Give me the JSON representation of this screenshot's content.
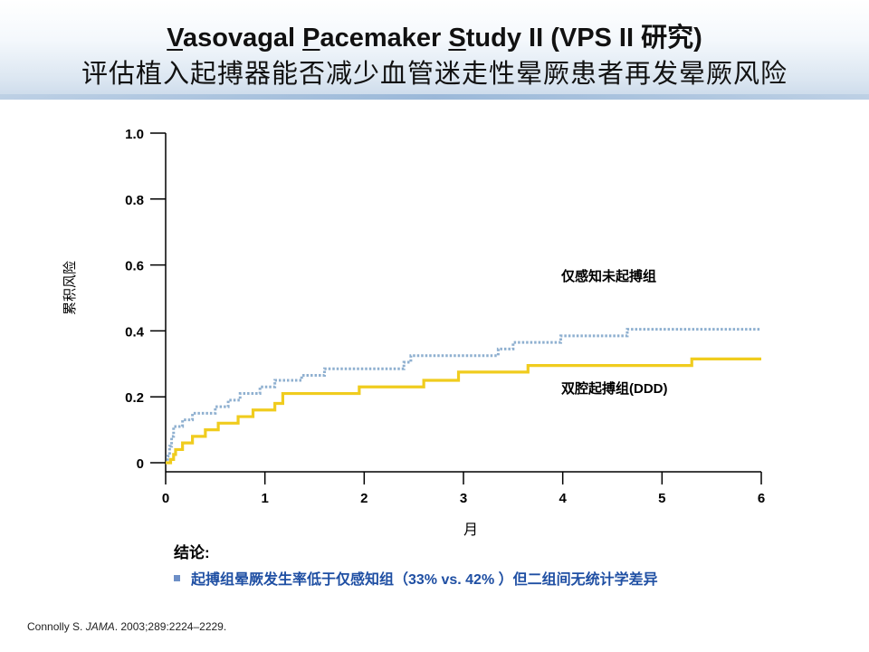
{
  "header": {
    "title_parts": [
      "V",
      "asovagal ",
      "P",
      "acemaker ",
      "S",
      "tudy II (VPS II 研究)"
    ],
    "subtitle": "评估植入起搏器能否减少血管迷走性晕厥患者再发晕厥风险"
  },
  "chart_data": {
    "type": "line",
    "xlabel": "月",
    "ylabel": "累积风险",
    "xlim": [
      0,
      6
    ],
    "ylim": [
      0,
      1.0
    ],
    "x_ticks": [
      "0",
      "1",
      "2",
      "3",
      "4",
      "5",
      "6"
    ],
    "y_ticks": [
      "0",
      "0.2",
      "0.4",
      "0.6",
      "0.8",
      "1.0"
    ],
    "grid": false,
    "series": [
      {
        "name": "仅感知未起搏组",
        "color": "#8fb0d0",
        "style": "dotted",
        "points": [
          [
            0,
            0
          ],
          [
            0.02,
            0.02
          ],
          [
            0.04,
            0.05
          ],
          [
            0.06,
            0.08
          ],
          [
            0.08,
            0.11
          ],
          [
            0.17,
            0.13
          ],
          [
            0.27,
            0.15
          ],
          [
            0.5,
            0.17
          ],
          [
            0.63,
            0.19
          ],
          [
            0.75,
            0.21
          ],
          [
            0.95,
            0.23
          ],
          [
            1.1,
            0.25
          ],
          [
            1.37,
            0.265
          ],
          [
            1.6,
            0.285
          ],
          [
            2.4,
            0.305
          ],
          [
            2.47,
            0.325
          ],
          [
            3.35,
            0.345
          ],
          [
            3.5,
            0.365
          ],
          [
            3.98,
            0.385
          ],
          [
            4.65,
            0.405
          ],
          [
            6.0,
            0.405
          ]
        ]
      },
      {
        "name": "双腔起搏组(DDD)",
        "color": "#f0cc1e",
        "style": "solid",
        "points": [
          [
            0,
            0
          ],
          [
            0.05,
            0.01
          ],
          [
            0.08,
            0.025
          ],
          [
            0.1,
            0.04
          ],
          [
            0.17,
            0.06
          ],
          [
            0.27,
            0.08
          ],
          [
            0.4,
            0.1
          ],
          [
            0.53,
            0.12
          ],
          [
            0.73,
            0.14
          ],
          [
            0.88,
            0.16
          ],
          [
            1.1,
            0.18
          ],
          [
            1.18,
            0.21
          ],
          [
            1.95,
            0.23
          ],
          [
            2.6,
            0.25
          ],
          [
            2.95,
            0.275
          ],
          [
            3.65,
            0.295
          ],
          [
            5.3,
            0.315
          ],
          [
            6.0,
            0.315
          ]
        ]
      }
    ]
  },
  "conclusion": {
    "title": "结论:",
    "bullet": "起搏组晕厥发生率低于仅感知组（33% vs. 42% ）但二组间无统计学差异"
  },
  "citation": {
    "author": "Connolly S. ",
    "journal": "JAMA",
    "details": ". 2003;289:2224–2229."
  },
  "colors": {
    "title": "#111111",
    "accent_blue": "#1f4fa3",
    "bullet_square": "#6d8fc7"
  }
}
